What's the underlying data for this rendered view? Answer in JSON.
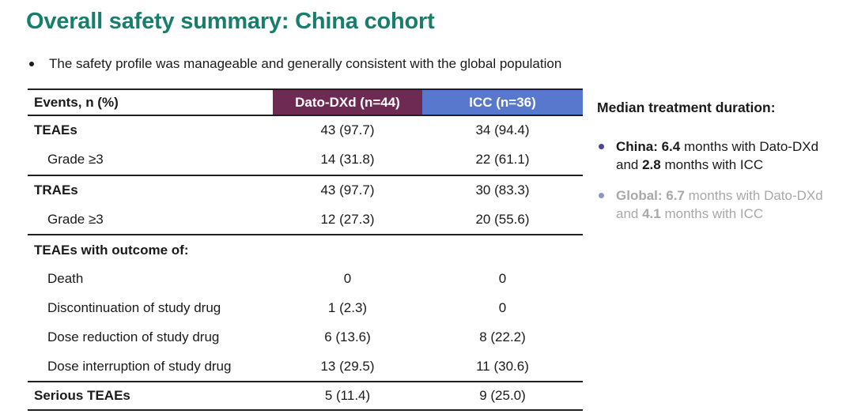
{
  "title": "Overall safety summary: China cohort",
  "subtitle": "The safety profile was manageable and generally consistent with the global population",
  "colors": {
    "title_teal": "#177E6B",
    "dato_header_bg": "#6E2A53",
    "icc_header_bg": "#5878CE",
    "header_text": "#FFFFFF",
    "body_text": "#1A1A1A",
    "china_bullet": "#4646A0",
    "global_bullet": "#9094C4",
    "global_text": "#A8A8A8",
    "rule": "#1F1F1F"
  },
  "table": {
    "columns": [
      {
        "id": "events",
        "label": "Events, n (%)"
      },
      {
        "id": "dato",
        "label": "Dato-DXd (n=44)"
      },
      {
        "id": "icc",
        "label": "ICC (n=36)"
      }
    ],
    "rows": [
      {
        "label": "TEAEs",
        "bold": true,
        "indent": false,
        "dato": "43 (97.7)",
        "icc": "34 (94.4)",
        "divider_after": false
      },
      {
        "label": "Grade ≥3",
        "bold": false,
        "indent": true,
        "dato": "14 (31.8)",
        "icc": "22 (61.1)",
        "divider_after": true
      },
      {
        "label": "TRAEs",
        "bold": true,
        "indent": false,
        "dato": "43 (97.7)",
        "icc": "30 (83.3)",
        "divider_after": false
      },
      {
        "label": "Grade ≥3",
        "bold": false,
        "indent": true,
        "dato": "12 (27.3)",
        "icc": "20 (55.6)",
        "divider_after": true
      },
      {
        "label": "TEAEs with outcome of:",
        "bold": true,
        "indent": false,
        "dato": "",
        "icc": "",
        "divider_after": false
      },
      {
        "label": "Death",
        "bold": false,
        "indent": true,
        "dato": "0",
        "icc": "0",
        "divider_after": false
      },
      {
        "label": "Discontinuation of study drug",
        "bold": false,
        "indent": true,
        "dato": "1 (2.3)",
        "icc": "0",
        "divider_after": false
      },
      {
        "label": "Dose reduction of study drug",
        "bold": false,
        "indent": true,
        "dato": "6 (13.6)",
        "icc": "8 (22.2)",
        "divider_after": false
      },
      {
        "label": "Dose interruption of study drug",
        "bold": false,
        "indent": true,
        "dato": "13 (29.5)",
        "icc": "11 (30.6)",
        "divider_after": true
      },
      {
        "label": "Serious TEAEs",
        "bold": true,
        "indent": false,
        "dato": "5 (11.4)",
        "icc": "9 (25.0)",
        "divider_after": false
      }
    ]
  },
  "duration_panel": {
    "heading": "Median treatment duration:",
    "bullets": [
      {
        "id": "china",
        "text_color": "#1A1A1A",
        "bullet_color": "#4646A0",
        "lines": [
          [
            {
              "t": "China: 6.4",
              "b": true
            },
            {
              "t": " months with Dato-DXd",
              "b": false
            }
          ],
          [
            {
              "t": "and ",
              "b": false
            },
            {
              "t": "2.8",
              "b": true
            },
            {
              "t": " months with ICC",
              "b": false
            }
          ]
        ]
      },
      {
        "id": "global",
        "text_color": "#A8A8A8",
        "bullet_color": "#9094C4",
        "lines": [
          [
            {
              "t": "Global: 6.7",
              "b": true
            },
            {
              "t": " months with Dato-DXd",
              "b": false
            }
          ],
          [
            {
              "t": "and ",
              "b": false
            },
            {
              "t": "4.1",
              "b": true
            },
            {
              "t": " months with ICC",
              "b": false
            }
          ]
        ]
      }
    ]
  }
}
